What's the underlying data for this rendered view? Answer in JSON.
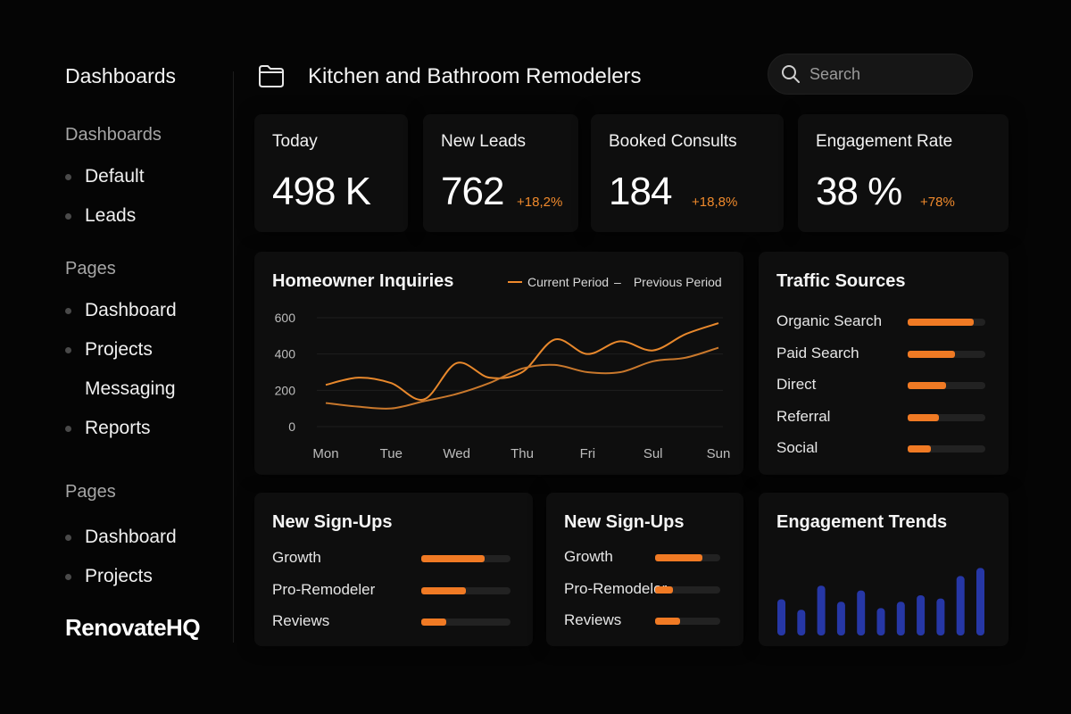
{
  "sidebar": {
    "title": "Dashboards",
    "sections": [
      {
        "label": "Dashboards",
        "items": [
          {
            "label": "Default",
            "bullet": true
          },
          {
            "label": "Leads",
            "bullet": true
          }
        ]
      },
      {
        "label": "Pages",
        "items": [
          {
            "label": "Dashboard",
            "bullet": true
          },
          {
            "label": "Projects",
            "bullet": true
          },
          {
            "label": "Messaging",
            "bullet": false
          },
          {
            "label": "Reports",
            "bullet": true
          }
        ]
      },
      {
        "label": "Pages",
        "items": [
          {
            "label": "Dashboard",
            "bullet": true
          },
          {
            "label": "Projects",
            "bullet": true
          }
        ]
      }
    ],
    "brand": "RenovateHQ"
  },
  "header": {
    "icon": "folder-icon",
    "title": "Kitchen and Bathroom Remodelers",
    "search_placeholder": "Search"
  },
  "kpis": [
    {
      "label": "Today",
      "value": "498 K",
      "delta": ""
    },
    {
      "label": "New Leads",
      "value": "762",
      "delta": "+18,2%"
    },
    {
      "label": "Booked Consults",
      "value": "184",
      "delta": "+18,8%"
    },
    {
      "label": "Engagement Rate",
      "value": "38 %",
      "delta": "+78%"
    }
  ],
  "inquiries": {
    "title": "Homeowner Inquiries",
    "legend_current": "Current Period",
    "legend_separator": "–",
    "legend_previous": "Previous Period"
  },
  "chart_data": [
    {
      "type": "line",
      "title": "Homeowner Inquiries",
      "categories": [
        "Mon",
        "Tue",
        "Wed",
        "Thu",
        "Fri",
        "Sul",
        "Sun"
      ],
      "y_ticks": [
        "600",
        "400",
        "200",
        "0"
      ],
      "ylim": [
        0,
        600
      ],
      "grid": true,
      "legend": "top-right",
      "series": [
        {
          "name": "Current Period",
          "color": "#e8882c",
          "x": [
            0,
            0.5,
            1,
            1.5,
            2,
            2.5,
            3,
            3.5,
            4,
            4.5,
            5,
            5.5,
            6
          ],
          "values": [
            230,
            270,
            240,
            150,
            350,
            270,
            300,
            480,
            400,
            470,
            420,
            510,
            570
          ]
        },
        {
          "name": "Previous Period",
          "color": "#c9782c",
          "x": [
            0,
            0.5,
            1,
            1.5,
            2,
            2.5,
            3,
            3.5,
            4,
            4.5,
            5,
            5.5,
            6
          ],
          "values": [
            130,
            110,
            100,
            140,
            180,
            240,
            320,
            340,
            300,
            300,
            360,
            380,
            435
          ]
        }
      ]
    },
    {
      "type": "bar",
      "title": "Engagement Trends",
      "values": [
        45,
        32,
        62,
        42,
        56,
        34,
        42,
        50,
        46,
        74,
        84
      ],
      "ylim": [
        0,
        100
      ],
      "color": "#2637a6"
    }
  ],
  "traffic": {
    "title": "Traffic Sources",
    "items": [
      {
        "label": "Organic Search",
        "value": 0.85
      },
      {
        "label": "Paid Search",
        "value": 0.61
      },
      {
        "label": "Direct",
        "value": 0.49
      },
      {
        "label": "Referral",
        "value": 0.4
      },
      {
        "label": "Social",
        "value": 0.3
      }
    ]
  },
  "signups": [
    {
      "title": "New Sign-Ups",
      "items": [
        {
          "label": "Growth",
          "value": 0.71
        },
        {
          "label": "Pro-Remodeler",
          "value": 0.5
        },
        {
          "label": "Reviews",
          "value": 0.28
        }
      ]
    },
    {
      "title": "New Sign-Ups",
      "items": [
        {
          "label": "Growth",
          "value": 0.72
        },
        {
          "label": "Pro-Remodeler",
          "value": 0.28
        },
        {
          "label": "Reviews",
          "value": 0.38
        }
      ]
    }
  ],
  "engagement": {
    "title": "Engagement Trends"
  },
  "colors": {
    "accent": "#f07a24",
    "bar_blue": "#2637a6",
    "background": "#050505",
    "card": "#0e0e0e"
  }
}
